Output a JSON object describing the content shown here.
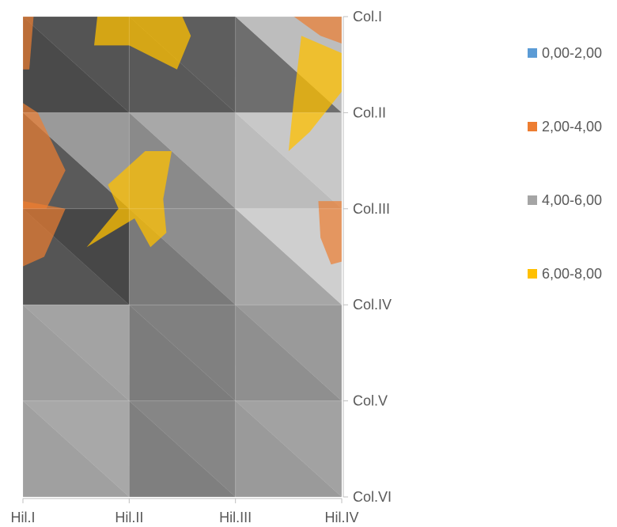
{
  "chart_data": {
    "type": "heatmap",
    "subtype": "3d-surface-top-view (contour)",
    "title": "",
    "xlabel": "",
    "ylabel": "",
    "x_categories": [
      "Hil.I",
      "Hil.II",
      "Hil.III",
      "Hil.IV"
    ],
    "y_categories": [
      "Col.I",
      "Col.II",
      "Col.III",
      "Col.IV",
      "Col.V",
      "Col.VI"
    ],
    "legend": {
      "position": "right",
      "entries": [
        {
          "label": "0,00-2,00",
          "color": "#5b9bd5"
        },
        {
          "label": "2,00-4,00",
          "color": "#ed7d31"
        },
        {
          "label": "4,00-6,00",
          "color": "#a5a5a5"
        },
        {
          "label": "6,00-8,00",
          "color": "#ffc000"
        }
      ]
    },
    "values": [
      [
        2.6,
        7.5,
        4.8,
        2.8
      ],
      [
        2.6,
        4.6,
        4.6,
        6.6
      ],
      [
        3.6,
        7.4,
        4.8,
        3.2
      ],
      [
        5.0,
        4.6,
        4.6,
        4.8
      ],
      [
        5.2,
        4.6,
        4.6,
        4.8
      ],
      [
        4.6,
        4.6,
        4.6,
        4.4
      ]
    ]
  }
}
